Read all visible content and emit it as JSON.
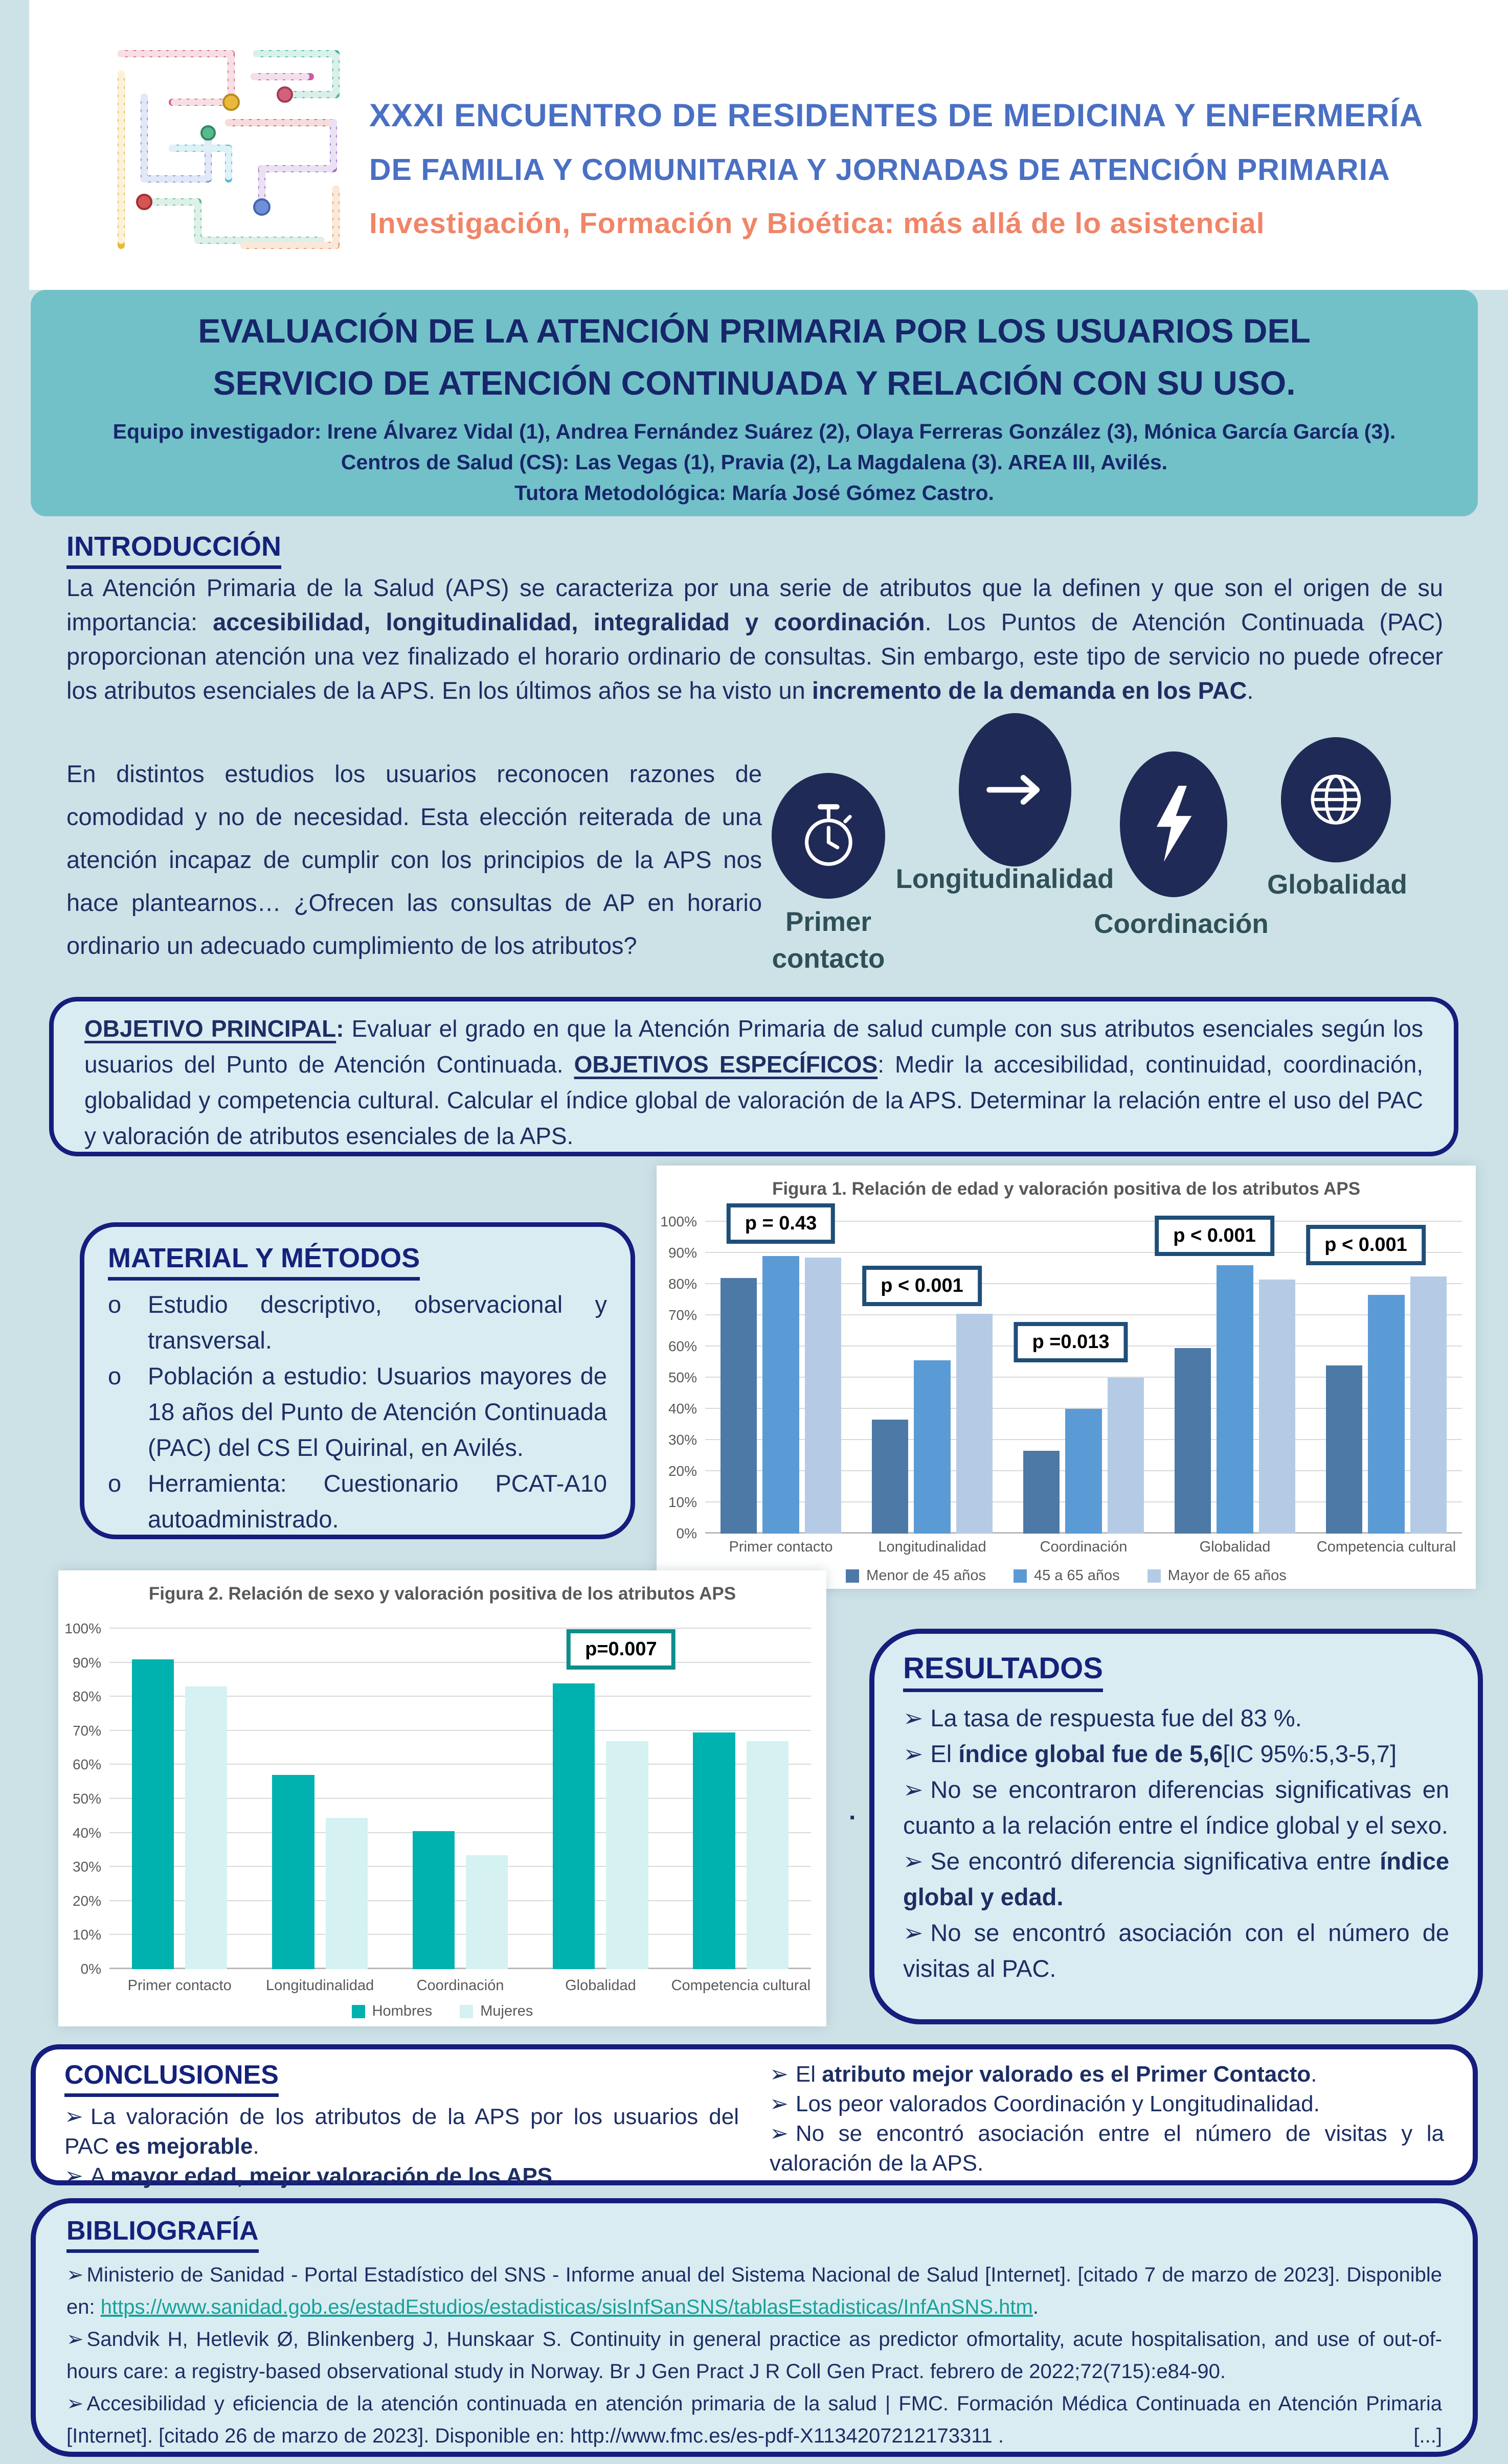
{
  "colors": {
    "page_bg": "#cde2e7",
    "band_teal": "#73c1c8",
    "navy_text": "#1c2e63",
    "box_border_navy": "#151d7d",
    "conference_blue": "#4a70c4",
    "subtitle_coral": "#f08568",
    "link_teal": "#18a29a",
    "figure_title_gray": "#595959",
    "icon_circle_navy": "#1f2a56",
    "fig1_pbox_border": "#1f4e79",
    "fig2_pbox_border": "#0c8e8c"
  },
  "header": {
    "line1": "XXXI ENCUENTRO DE RESIDENTES DE MEDICINA Y ENFERMERÍA",
    "line2": "DE FAMILIA Y COMUNITARIA Y JORNADAS DE ATENCIÓN PRIMARIA",
    "line3": "Investigación, Formación y Bioética: más allá de lo asistencial"
  },
  "title_band": {
    "title_line1": "EVALUACIÓN DE LA ATENCIÓN PRIMARIA POR LOS USUARIOS DEL",
    "title_line2": "SERVICIO DE ATENCIÓN CONTINUADA Y RELACIÓN CON SU USO.",
    "team": "Equipo investigador: Irene Álvarez Vidal (1), Andrea Fernández Suárez (2), Olaya Ferreras González (3), Mónica García García (3).",
    "centers": "Centros de Salud (CS): Las Vegas (1), Pravia (2), La Magdalena (3). AREA III, Avilés.",
    "tutor": "Tutora Metodológica: María José Gómez Castro."
  },
  "intro": {
    "heading": "INTRODUCCIÓN",
    "p1": [
      {
        "t": "La Atención Primaria de la Salud (APS) se caracteriza por una serie de atributos que la definen y que son el origen de su importancia: "
      },
      {
        "t": "accesibilidad, longitudinalidad, integralidad y coordinación",
        "b": true
      },
      {
        "t": ". Los Puntos de Atención Continuada (PAC) proporcionan atención una vez finalizado el horario ordinario de consultas. Sin embargo, este tipo de servicio no puede ofrecer los atributos esenciales de la APS. En los últimos años se ha visto un "
      },
      {
        "t": "incremento de la demanda en los PAC",
        "b": true
      },
      {
        "t": "."
      }
    ],
    "p2": [
      {
        "t": "En distintos estudios los usuarios reconocen razones de comodidad y no de necesidad. Esta elección reiterada de una atención incapaz de cumplir con los principios de la APS nos hace plantearnos… ¿Ofrecen las consultas de AP en horario ordinario un adecuado cumplimiento de los atributos?"
      }
    ],
    "attributes": [
      {
        "label": "Primer contacto",
        "icon": "stopwatch-icon"
      },
      {
        "label": "Longitudinalidad",
        "icon": "arrow-right-icon"
      },
      {
        "label": "Coordinación",
        "icon": "lightning-icon"
      },
      {
        "label": "Globalidad",
        "icon": "globe-icon"
      }
    ]
  },
  "objetivo": {
    "text": [
      {
        "t": "OBJETIVO PRINCIPAL",
        "b": true,
        "u": true
      },
      {
        "t": ": ",
        "b": true
      },
      {
        "t": "Evaluar el grado en que la Atención Primaria de salud cumple con sus atributos esenciales según los usuarios del Punto de Atención Continuada. "
      },
      {
        "t": "OBJETIVOS ESPECÍFICOS",
        "b": true,
        "u": true
      },
      {
        "t": ": Medir la accesibilidad, continuidad, coordinación, globalidad y competencia cultural. Calcular el índice global de valoración de la APS. Determinar la relación entre el uso del PAC y valoración de atributos esenciales de la APS."
      }
    ]
  },
  "material": {
    "heading": "MATERIAL Y MÉTODOS",
    "marker": "o",
    "items": [
      [
        {
          "t": "Estudio descriptivo, observacional y transversal."
        }
      ],
      [
        {
          "t": "Población a estudio: Usuarios mayores de 18 años del Punto de Atención Continuada (PAC) del CS El Quirinal, en Avilés."
        }
      ],
      [
        {
          "t": "Herramienta: Cuestionario PCAT-A10 autoadministrado."
        }
      ]
    ]
  },
  "chart_data": [
    {
      "type": "bar",
      "title": "Figura 1. Relación de edad y valoración positiva de los atributos APS",
      "categories": [
        "Primer contacto",
        "Longitudinalidad",
        "Coordinación",
        "Globalidad",
        "Competencia cultural"
      ],
      "series": [
        {
          "name": "Menor de 45 años",
          "color": "#4d79a7",
          "values": [
            82,
            36.5,
            26.5,
            59.5,
            54
          ]
        },
        {
          "name": "45 a 65 años",
          "color": "#5b9bd5",
          "values": [
            89,
            55.5,
            40,
            86,
            76.5
          ]
        },
        {
          "name": "Mayor de 65 años",
          "color": "#b5cbe5",
          "values": [
            88.5,
            70.5,
            50,
            81.5,
            82.5
          ]
        }
      ],
      "ylabel": "",
      "xlabel": "",
      "ylim": [
        0,
        100
      ],
      "ytick_step": 10,
      "grid": true,
      "legend_position": "bottom",
      "annotation_border": "#1f4e79",
      "annotations": [
        {
          "text": "p = 0.43",
          "group": 0,
          "bottom_pct": 93,
          "dx": 0
        },
        {
          "text": "p < 0.001",
          "group": 1,
          "bottom_pct": 73,
          "dx": -20
        },
        {
          "text": "p =0.013",
          "group": 2,
          "bottom_pct": 55,
          "dx": -25
        },
        {
          "text": "p < 0.001",
          "group": 3,
          "bottom_pct": 89,
          "dx": -40
        },
        {
          "text": "p < 0.001",
          "group": 4,
          "bottom_pct": 86,
          "dx": -40
        }
      ]
    },
    {
      "type": "bar",
      "title": "Figura 2. Relación de sexo y valoración positiva de los atributos APS",
      "categories": [
        "Primer contacto",
        "Longitudinalidad",
        "Coordinación",
        "Globalidad",
        "Competencia cultural"
      ],
      "series": [
        {
          "name": "Hombres",
          "color": "#00b2af",
          "values": [
            91,
            57,
            40.5,
            84,
            69.5
          ]
        },
        {
          "name": "Mujeres",
          "color": "#d5f1f1",
          "values": [
            83,
            44.5,
            33.5,
            67,
            67
          ]
        }
      ],
      "ylabel": "",
      "xlabel": "",
      "ylim": [
        0,
        100
      ],
      "ytick_step": 10,
      "grid": true,
      "legend_position": "bottom",
      "annotation_border": "#0c8e8c",
      "annotations": [
        {
          "text": "p=0.007",
          "group": 3,
          "bottom_pct": 88,
          "dx": 40
        }
      ]
    }
  ],
  "stray_period": ".",
  "resultados": {
    "heading": "RESULTADOS",
    "marker": "➢",
    "items": [
      [
        {
          "t": "La tasa de respuesta fue del 83 %."
        }
      ],
      [
        {
          "t": "El "
        },
        {
          "t": "índice global fue de 5,6",
          "b": true
        },
        {
          "t": "[IC 95%:5,3-5,7]"
        }
      ],
      [
        {
          "t": "No se encontraron diferencias significativas en cuanto a la relación entre el índice global y el sexo."
        }
      ],
      [
        {
          "t": "Se encontró diferencia significativa entre "
        },
        {
          "t": "índice global y edad.",
          "b": true
        }
      ],
      [
        {
          "t": "No se encontró asociación con el número de visitas al PAC."
        }
      ]
    ]
  },
  "conclusiones": {
    "heading": "CONCLUSIONES",
    "marker": "➢",
    "left_items": [
      [
        {
          "t": "La valoración de los atributos de la APS por los usuarios del PAC "
        },
        {
          "t": "es mejorable",
          "b": true
        },
        {
          "t": "."
        }
      ],
      [
        {
          "t": "A "
        },
        {
          "t": "mayor edad, mejor valoración de los APS",
          "b": true
        },
        {
          "t": "."
        }
      ]
    ],
    "right_items": [
      [
        {
          "t": "El "
        },
        {
          "t": "atributo mejor valorado es el Primer Contacto",
          "b": true
        },
        {
          "t": "."
        }
      ],
      [
        {
          "t": "Los peor valorados Coordinación y Longitudinalidad."
        }
      ],
      [
        {
          "t": "No se encontró asociación entre el número de visitas y la valoración de la APS."
        }
      ]
    ]
  },
  "bibliografia": {
    "heading": "BIBLIOGRAFÍA",
    "marker": "➢",
    "items": [
      [
        {
          "t": "Ministerio de Sanidad - Portal Estadístico del SNS - Informe anual del Sistema Nacional de Salud [Internet]. [citado 7 de marzo de 2023]. Disponible en: "
        },
        {
          "t": "https://www.sanidad.gob.es/estadEstudios/estadisticas/sisInfSanSNS/tablasEstadisticas/InfAnSNS.htm",
          "link": true
        },
        {
          "t": "."
        }
      ],
      [
        {
          "t": "Sandvik H, Hetlevik Ø, Blinkenberg J, Hunskaar S. Continuity in general practice as predictor ofmortality, acute hospitalisation, and use of out-of-hours care: a registry-based observational study in Norway. Br J Gen Pract J R Coll Gen Pract. febrero de 2022;72(715):e84-90."
        }
      ],
      [
        {
          "t": "Accesibilidad y eficiencia de la atención continuada en atención primaria de la salud | FMC. Formación Médica Continuada en Atención Primaria [Internet]. [citado 26 de marzo de 2023]. Disponible en: http://www.fmc.es/es-pdf-X1134207212173311 ."
        },
        {
          "t": "[...]",
          "r": true
        }
      ]
    ]
  }
}
